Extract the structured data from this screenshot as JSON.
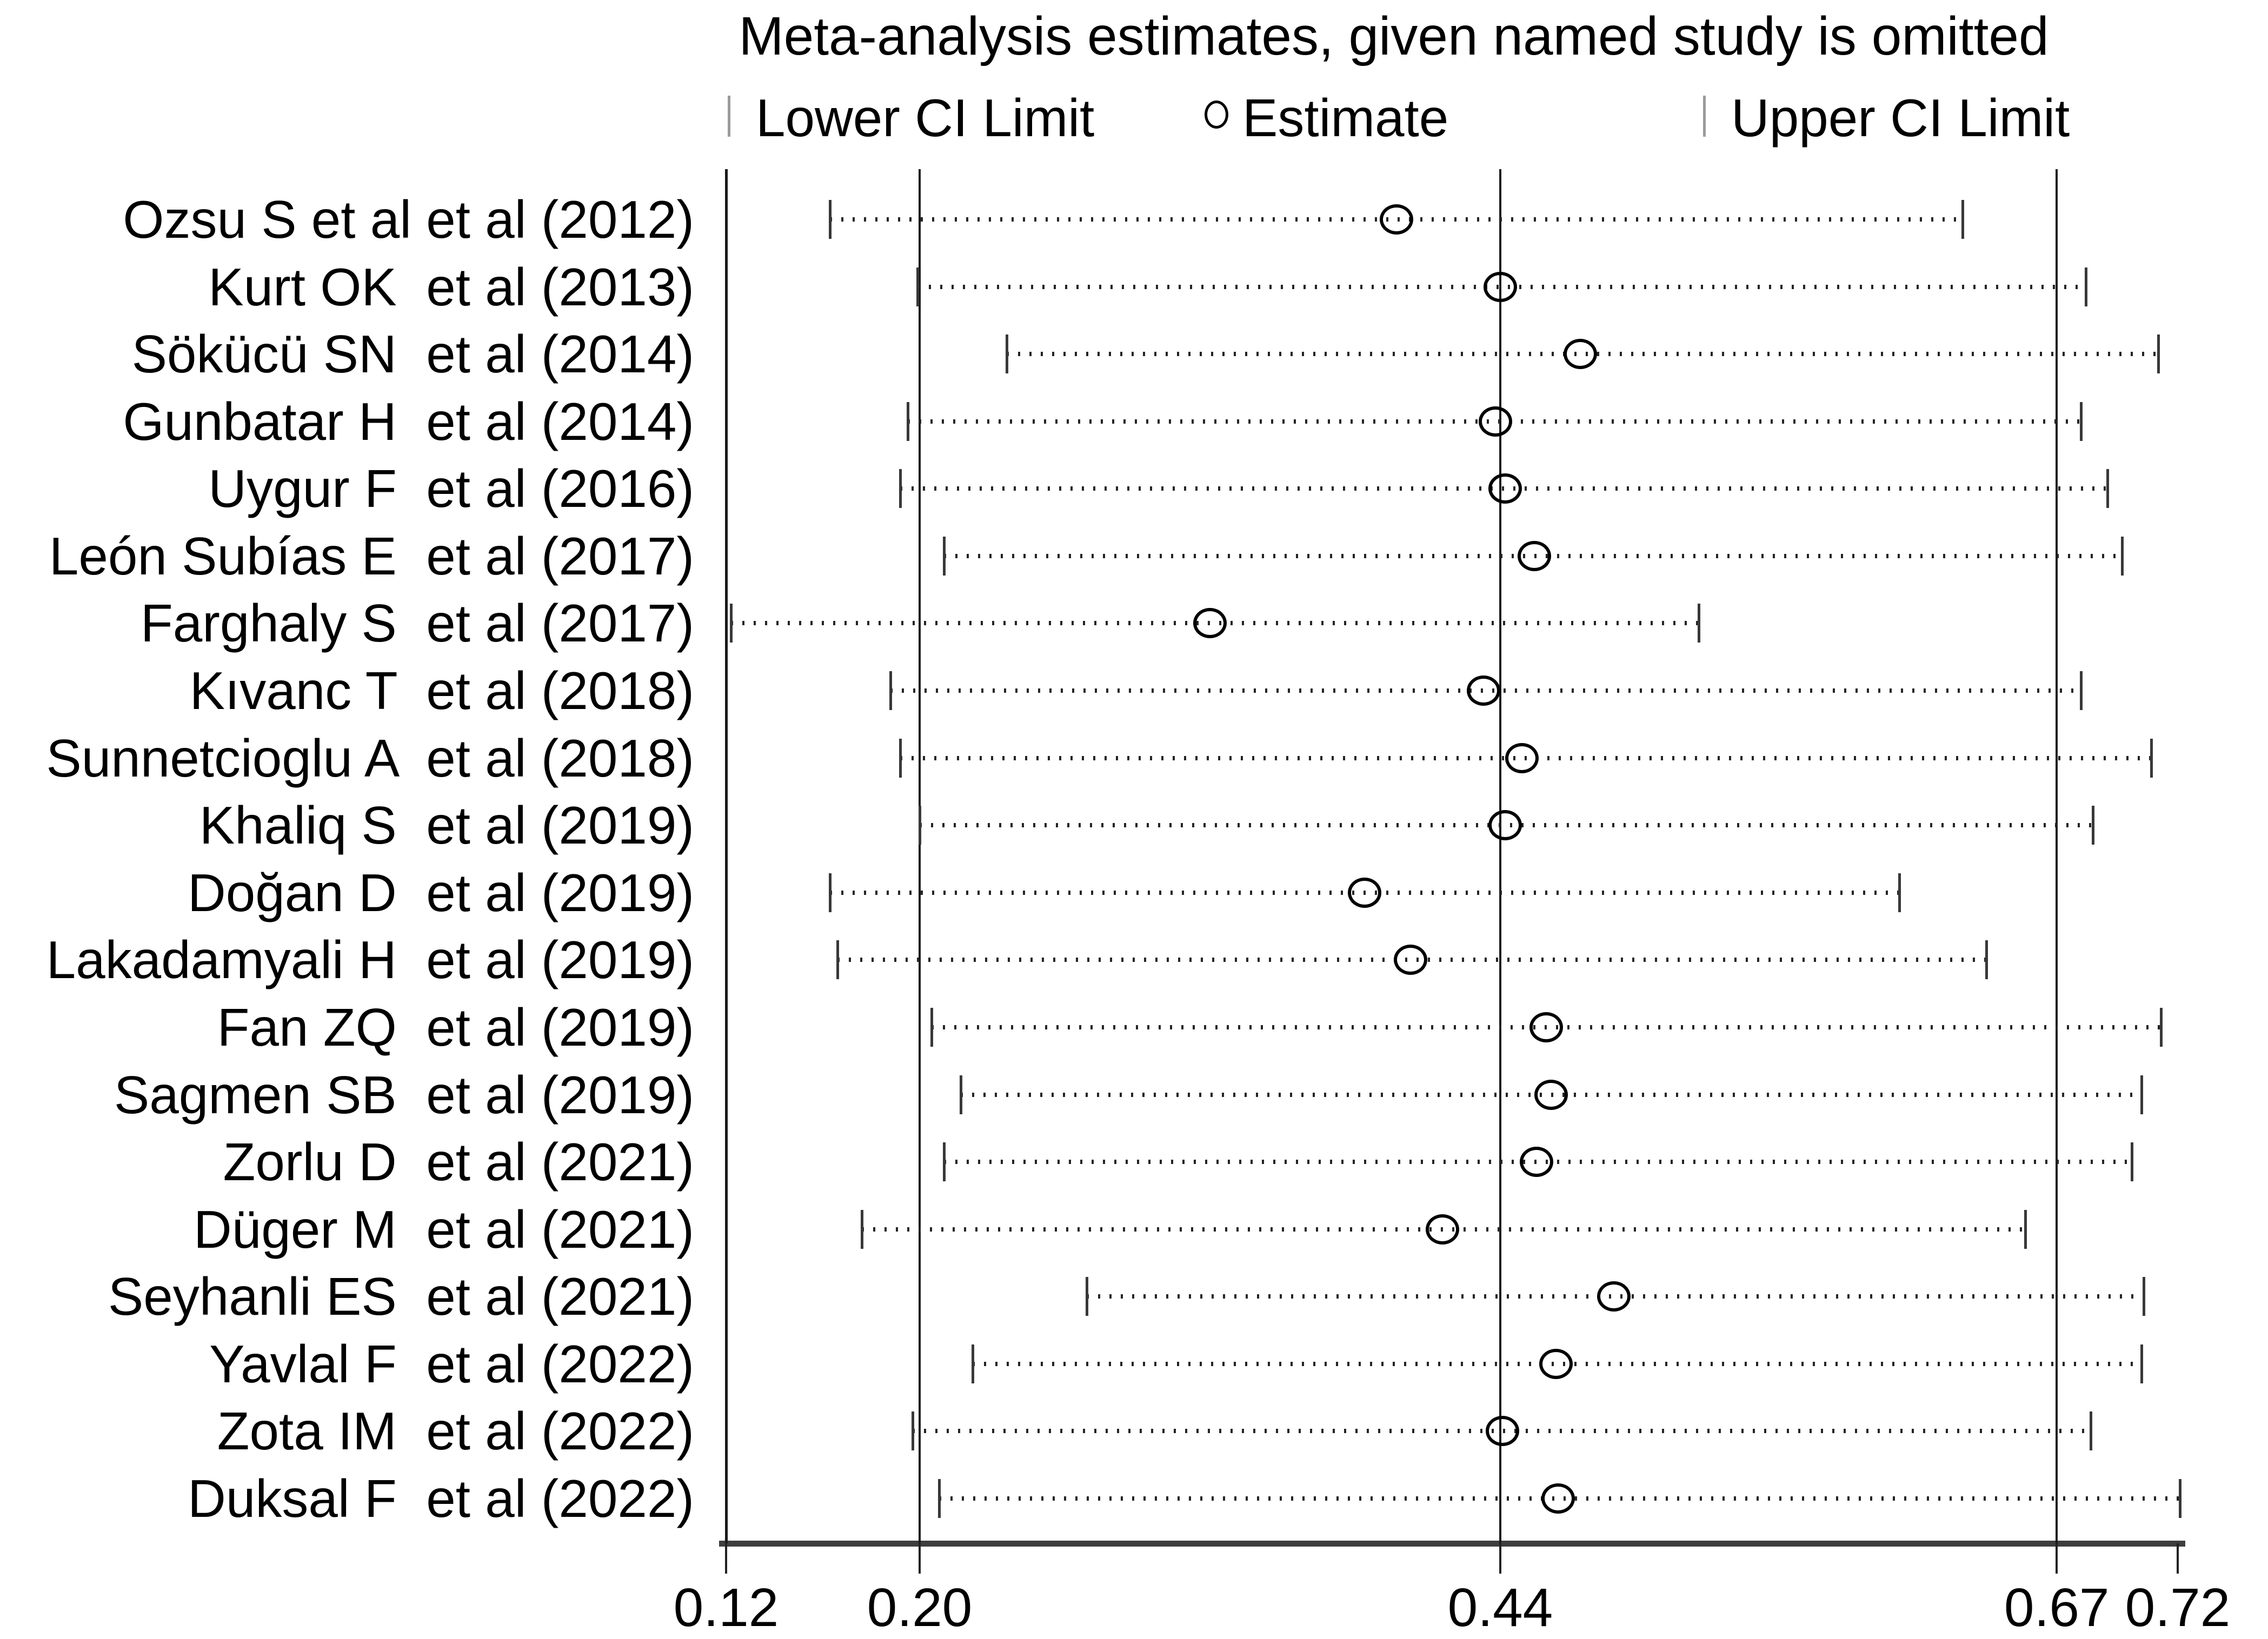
{
  "title": "Meta-analysis estimates, given named study is omitted",
  "legend": {
    "lower_label": "Lower CI Limit",
    "estimate_label": "Estimate",
    "upper_label": "Upper CI Limit"
  },
  "colors": {
    "marker_stroke": "#000000",
    "legend_bar": "#9b9b9b",
    "reference_line": "#1a1a1a",
    "axis_line": "#3e3e3e",
    "dotted_line": "#242424",
    "background": "#ffffff"
  },
  "chart_data": {
    "type": "scatter",
    "subtype": "leave-one-out-meta-analysis-forest-plot",
    "title": "Meta-analysis estimates, given named study is omitted",
    "xlabel": "",
    "ylabel": "",
    "xlim": [
      0.12,
      0.72
    ],
    "grid": false,
    "legend_position": "top",
    "legend_entries": [
      "Lower CI Limit",
      "Estimate",
      "Upper CI Limit"
    ],
    "x_ticks": [
      {
        "value": 0.12,
        "label": "0.12"
      },
      {
        "value": 0.2,
        "label": "0.20"
      },
      {
        "value": 0.44,
        "label": "0.44"
      },
      {
        "value": 0.67,
        "label": "0.67"
      },
      {
        "value": 0.72,
        "label": "0.72"
      }
    ],
    "reference_lines": [
      0.2,
      0.44,
      0.67
    ],
    "studies": [
      {
        "label": "Ozsu S et al et al (2012)",
        "lower": 0.163,
        "estimate": 0.397,
        "upper": 0.631
      },
      {
        "label": "Kurt OK  et al (2013)",
        "lower": 0.199,
        "estimate": 0.44,
        "upper": 0.682
      },
      {
        "label": "Sökücü SN  et al (2014)",
        "lower": 0.236,
        "estimate": 0.473,
        "upper": 0.712
      },
      {
        "label": "Gunbatar H  et al (2014)",
        "lower": 0.195,
        "estimate": 0.438,
        "upper": 0.68
      },
      {
        "label": "Uygur F  et al (2016)",
        "lower": 0.192,
        "estimate": 0.442,
        "upper": 0.691
      },
      {
        "label": "León Subías E  et al (2017)",
        "lower": 0.21,
        "estimate": 0.454,
        "upper": 0.697
      },
      {
        "label": "Farghaly S  et al (2017)",
        "lower": 0.122,
        "estimate": 0.32,
        "upper": 0.522
      },
      {
        "label": "Kıvanc T  et al (2018)",
        "lower": 0.188,
        "estimate": 0.433,
        "upper": 0.68
      },
      {
        "label": "Sunnetcioglu A  et al (2018)",
        "lower": 0.192,
        "estimate": 0.449,
        "upper": 0.709
      },
      {
        "label": "Khaliq S  et al (2019)",
        "lower": 0.2,
        "estimate": 0.442,
        "upper": 0.685
      },
      {
        "label": "Doğan D  et al (2019)",
        "lower": 0.163,
        "estimate": 0.384,
        "upper": 0.605
      },
      {
        "label": "Lakadamyali H  et al (2019)",
        "lower": 0.166,
        "estimate": 0.403,
        "upper": 0.641
      },
      {
        "label": "Fan ZQ  et al (2019)",
        "lower": 0.205,
        "estimate": 0.459,
        "upper": 0.713
      },
      {
        "label": "Sagmen SB  et al (2019)",
        "lower": 0.217,
        "estimate": 0.461,
        "upper": 0.705
      },
      {
        "label": "Zorlu D  et al (2021)",
        "lower": 0.21,
        "estimate": 0.455,
        "upper": 0.701
      },
      {
        "label": "Düger M  et al (2021)",
        "lower": 0.176,
        "estimate": 0.416,
        "upper": 0.657
      },
      {
        "label": "Seyhanli ES  et al (2021)",
        "lower": 0.269,
        "estimate": 0.487,
        "upper": 0.706
      },
      {
        "label": "Yavlal F  et al (2022)",
        "lower": 0.222,
        "estimate": 0.463,
        "upper": 0.705
      },
      {
        "label": "Zota IM  et al (2022)",
        "lower": 0.197,
        "estimate": 0.441,
        "upper": 0.684
      },
      {
        "label": "Duksal F  et al (2022)",
        "lower": 0.208,
        "estimate": 0.464,
        "upper": 0.721
      }
    ]
  }
}
